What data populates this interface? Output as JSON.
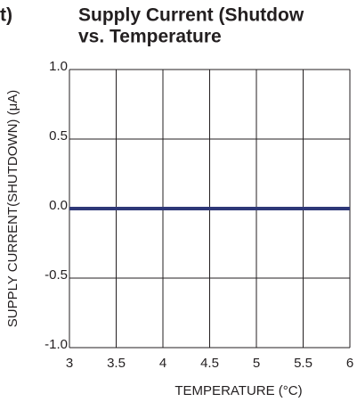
{
  "chart_data": {
    "type": "line",
    "title": "Supply Current (Shutdow",
    "subtitle": "vs. Temperature",
    "annotations": [
      "t)"
    ],
    "x_label": "TEMPERATURE (°C)",
    "y_label": "SUPPLY CURRENT(SHUTDOWN) (μA)",
    "x": [
      3,
      6
    ],
    "series": [
      {
        "name": "Supply Current",
        "color": "#2e3878",
        "values": [
          0,
          0
        ]
      }
    ],
    "xlim": [
      3,
      6
    ],
    "xticks": [
      3,
      3.5,
      4,
      4.5,
      5,
      5.5,
      6
    ],
    "ylim": [
      -1,
      1
    ],
    "yticks": [
      {
        "value": -1,
        "label": "-1.0"
      },
      -0.5,
      {
        "value": 0,
        "label": "0.0"
      },
      0.5,
      {
        "value": 1,
        "label": "1.0"
      }
    ],
    "grid": true
  }
}
